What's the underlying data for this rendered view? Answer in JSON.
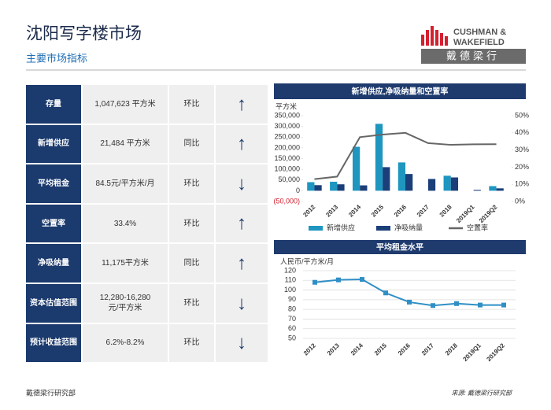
{
  "header": {
    "title": "沈阳写字楼市场",
    "subtitle": "主要市场指标"
  },
  "logo": {
    "line1": "CUSHMAN &",
    "line2": "WAKEFIELD",
    "chinese": "戴德梁行"
  },
  "table": {
    "rows": [
      [
        "存量",
        "1,047,623 平方米",
        "环比",
        "↑"
      ],
      [
        "新增供应",
        "21,484 平方米",
        "同比",
        "↑"
      ],
      [
        "平均租金",
        "84.5元/平方米/月",
        "环比",
        "↓"
      ],
      [
        "空置率",
        "33.4%",
        "环比",
        "↑"
      ],
      [
        "净吸纳量",
        "11,175平方米",
        "同比",
        "↑"
      ],
      [
        "资本估值范围",
        "12,280-16,280\n元/平方米",
        "环比",
        "↓"
      ],
      [
        "预计收益范围",
        "6.2%-8.2%",
        "环比",
        "↓"
      ]
    ]
  },
  "chart_data": [
    {
      "type": "bar",
      "title": "新增供应,净吸纳量和空置率",
      "y_label": "平方米",
      "categories": [
        "2012",
        "2013",
        "2014",
        "2015",
        "2016",
        "2017",
        "2018",
        "2019Q1",
        "2019Q2"
      ],
      "series": [
        {
          "name": "新增供应",
          "color": "#1e96c0",
          "values": [
            40000,
            42000,
            205000,
            312000,
            132000,
            0,
            70000,
            0,
            21484
          ]
        },
        {
          "name": "净吸纳量",
          "color": "#1b3f78",
          "values": [
            26000,
            30000,
            25000,
            110000,
            78000,
            55000,
            62000,
            4000,
            11175
          ]
        },
        {
          "name": "空置率",
          "type": "line",
          "axis": "y2",
          "color": "#666666",
          "values": [
            13,
            14.5,
            37.5,
            39,
            40,
            34,
            33,
            33.3,
            33.4
          ]
        }
      ],
      "ylim": [
        -50000,
        350000
      ],
      "yticks": [
        {
          "value": -50000,
          "label": "(50,000)"
        },
        0,
        {
          "value": 50000,
          "label": "50,000"
        },
        {
          "value": 100000,
          "label": "100,000"
        },
        {
          "value": 150000,
          "label": "150,000"
        },
        {
          "value": 200000,
          "label": "200,000"
        },
        {
          "value": 250000,
          "label": "250,000"
        },
        {
          "value": 300000,
          "label": "300,000"
        },
        {
          "value": 350000,
          "label": "350,000"
        }
      ],
      "y2lim": [
        0,
        50
      ],
      "y2ticks": [
        {
          "value": 0,
          "label": "0%"
        },
        {
          "value": 10,
          "label": "10%"
        },
        {
          "value": 20,
          "label": "20%"
        },
        {
          "value": 30,
          "label": "30%"
        },
        {
          "value": 40,
          "label": "40%"
        },
        {
          "value": 50,
          "label": "50%"
        }
      ],
      "grid": false,
      "legend": "bottom"
    },
    {
      "type": "line",
      "title": "平均租金水平",
      "y_label": "人民币/平方米/月",
      "categories": [
        "2012",
        "2013",
        "2014",
        "2015",
        "2016",
        "2017",
        "2018",
        "2019Q1",
        "2019Q2"
      ],
      "values": [
        108,
        110.5,
        111,
        97,
        87.5,
        84,
        86,
        84.5,
        84.5
      ],
      "color": "#2f8fc6",
      "ylim": [
        50,
        120
      ],
      "yticks": [
        50,
        60,
        70,
        80,
        90,
        100,
        110,
        120
      ],
      "grid": true
    }
  ],
  "footer": {
    "left": "戴德梁行研究部",
    "right": "来源: 戴德梁行研究部"
  }
}
